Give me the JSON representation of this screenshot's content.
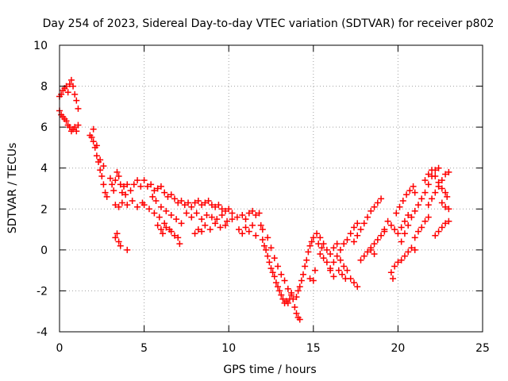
{
  "chart_data": {
    "type": "scatter",
    "title": "Day 254 of 2023, Sidereal Day-to-day VTEC variation (SDTVAR) for receiver p802",
    "xlabel": "GPS time / hours",
    "ylabel": "SDTVAR / TECUs",
    "xlim": [
      0,
      25
    ],
    "ylim": [
      -4,
      10
    ],
    "xticks": [
      0,
      5,
      10,
      15,
      20,
      25
    ],
    "yticks": [
      -4,
      -2,
      0,
      2,
      4,
      6,
      8,
      10
    ],
    "xtick_labels": [
      "0",
      "5",
      "10",
      "15",
      "20",
      "25"
    ],
    "ytick_labels": [
      "-4",
      "-2",
      "0",
      "2",
      "4",
      "6",
      "8",
      "10"
    ],
    "grid": true,
    "marker": "+",
    "series_color": "#ff0000",
    "series": [
      {
        "name": "SDTVAR",
        "points": [
          [
            0.0,
            7.5
          ],
          [
            0.1,
            7.6
          ],
          [
            0.2,
            7.8
          ],
          [
            0.3,
            7.9
          ],
          [
            0.4,
            8.0
          ],
          [
            0.5,
            7.7
          ],
          [
            0.6,
            8.1
          ],
          [
            0.7,
            8.3
          ],
          [
            0.8,
            8.0
          ],
          [
            0.9,
            7.6
          ],
          [
            1.0,
            7.3
          ],
          [
            1.1,
            6.9
          ],
          [
            0.0,
            6.8
          ],
          [
            0.1,
            6.6
          ],
          [
            0.2,
            6.5
          ],
          [
            0.3,
            6.4
          ],
          [
            0.4,
            6.3
          ],
          [
            0.5,
            6.1
          ],
          [
            0.6,
            6.0
          ],
          [
            0.7,
            5.8
          ],
          [
            0.8,
            5.9
          ],
          [
            0.9,
            6.0
          ],
          [
            1.0,
            5.8
          ],
          [
            1.1,
            6.1
          ],
          [
            1.8,
            5.6
          ],
          [
            1.9,
            5.5
          ],
          [
            2.0,
            5.3
          ],
          [
            2.1,
            5.0
          ],
          [
            2.2,
            4.6
          ],
          [
            2.3,
            4.3
          ],
          [
            2.4,
            3.9
          ],
          [
            2.5,
            3.6
          ],
          [
            2.6,
            3.2
          ],
          [
            2.7,
            2.8
          ],
          [
            2.8,
            2.6
          ],
          [
            2.0,
            5.9
          ],
          [
            2.2,
            5.1
          ],
          [
            2.4,
            4.4
          ],
          [
            2.6,
            4.1
          ],
          [
            3.0,
            3.5
          ],
          [
            3.1,
            3.2
          ],
          [
            3.2,
            2.9
          ],
          [
            3.3,
            3.4
          ],
          [
            3.4,
            3.8
          ],
          [
            3.5,
            3.6
          ],
          [
            3.6,
            3.2
          ],
          [
            3.7,
            2.8
          ],
          [
            3.8,
            3.1
          ],
          [
            3.9,
            2.7
          ],
          [
            4.0,
            3.2
          ],
          [
            4.2,
            2.9
          ],
          [
            4.4,
            3.2
          ],
          [
            4.6,
            3.4
          ],
          [
            4.8,
            3.1
          ],
          [
            3.3,
            2.2
          ],
          [
            3.5,
            2.1
          ],
          [
            3.7,
            2.3
          ],
          [
            4.0,
            2.2
          ],
          [
            4.3,
            2.4
          ],
          [
            4.6,
            2.1
          ],
          [
            4.9,
            2.3
          ],
          [
            3.3,
            0.6
          ],
          [
            3.4,
            0.8
          ],
          [
            3.5,
            0.4
          ],
          [
            3.6,
            0.2
          ],
          [
            4.0,
            0.0
          ],
          [
            5.0,
            3.4
          ],
          [
            5.2,
            3.1
          ],
          [
            5.4,
            3.2
          ],
          [
            5.6,
            2.9
          ],
          [
            5.8,
            3.0
          ],
          [
            6.0,
            3.1
          ],
          [
            6.2,
            2.8
          ],
          [
            6.4,
            2.6
          ],
          [
            6.6,
            2.7
          ],
          [
            6.8,
            2.5
          ],
          [
            7.0,
            2.3
          ],
          [
            7.2,
            2.4
          ],
          [
            7.4,
            2.2
          ],
          [
            7.6,
            2.3
          ],
          [
            7.8,
            2.1
          ],
          [
            8.0,
            2.3
          ],
          [
            8.2,
            2.4
          ],
          [
            8.4,
            2.2
          ],
          [
            8.6,
            2.3
          ],
          [
            8.8,
            2.4
          ],
          [
            9.0,
            2.2
          ],
          [
            9.2,
            2.1
          ],
          [
            9.4,
            2.2
          ],
          [
            9.6,
            2.0
          ],
          [
            9.8,
            1.9
          ],
          [
            10.0,
            2.0
          ],
          [
            5.0,
            2.2
          ],
          [
            5.3,
            2.0
          ],
          [
            5.6,
            1.8
          ],
          [
            5.9,
            1.6
          ],
          [
            6.2,
            1.3
          ],
          [
            6.5,
            1.0
          ],
          [
            6.8,
            0.7
          ],
          [
            7.1,
            0.3
          ],
          [
            5.5,
            2.6
          ],
          [
            5.7,
            2.4
          ],
          [
            6.0,
            2.1
          ],
          [
            6.3,
            1.9
          ],
          [
            6.6,
            1.7
          ],
          [
            6.9,
            1.5
          ],
          [
            7.2,
            1.3
          ],
          [
            5.8,
            1.2
          ],
          [
            6.0,
            1.0
          ],
          [
            6.1,
            0.8
          ],
          [
            6.3,
            1.1
          ],
          [
            6.6,
            0.9
          ],
          [
            7.0,
            0.6
          ],
          [
            7.5,
            1.8
          ],
          [
            7.8,
            1.6
          ],
          [
            8.1,
            1.8
          ],
          [
            8.4,
            1.5
          ],
          [
            8.7,
            1.7
          ],
          [
            9.0,
            1.6
          ],
          [
            9.3,
            1.5
          ],
          [
            9.6,
            1.7
          ],
          [
            9.9,
            1.4
          ],
          [
            10.2,
            1.5
          ],
          [
            8.0,
            0.8
          ],
          [
            8.2,
            1.0
          ],
          [
            8.4,
            0.9
          ],
          [
            8.6,
            1.2
          ],
          [
            8.9,
            1.0
          ],
          [
            9.2,
            1.3
          ],
          [
            9.5,
            1.1
          ],
          [
            9.8,
            1.2
          ],
          [
            10.2,
            1.8
          ],
          [
            10.5,
            1.6
          ],
          [
            10.8,
            1.7
          ],
          [
            11.0,
            1.5
          ],
          [
            11.2,
            1.8
          ],
          [
            11.4,
            1.9
          ],
          [
            11.6,
            1.7
          ],
          [
            11.8,
            1.8
          ],
          [
            11.9,
            1.2
          ],
          [
            12.0,
            1.0
          ],
          [
            10.6,
            1.0
          ],
          [
            10.8,
            0.8
          ],
          [
            11.0,
            1.1
          ],
          [
            11.2,
            0.9
          ],
          [
            11.4,
            1.2
          ],
          [
            11.6,
            0.7
          ],
          [
            12.0,
            0.5
          ],
          [
            12.1,
            0.2
          ],
          [
            12.2,
            0.0
          ],
          [
            12.3,
            -0.3
          ],
          [
            12.4,
            -0.6
          ],
          [
            12.5,
            -0.9
          ],
          [
            12.6,
            -1.1
          ],
          [
            12.7,
            -1.3
          ],
          [
            12.8,
            -1.6
          ],
          [
            12.9,
            -1.8
          ],
          [
            13.0,
            -2.0
          ],
          [
            13.1,
            -2.2
          ],
          [
            13.2,
            -2.4
          ],
          [
            13.3,
            -2.6
          ],
          [
            13.4,
            -2.5
          ],
          [
            13.5,
            -2.6
          ],
          [
            13.6,
            -2.4
          ],
          [
            13.7,
            -2.2
          ],
          [
            13.8,
            -2.4
          ],
          [
            13.9,
            -2.8
          ],
          [
            14.0,
            -3.1
          ],
          [
            14.1,
            -3.3
          ],
          [
            14.2,
            -3.4
          ],
          [
            12.3,
            0.6
          ],
          [
            12.5,
            0.1
          ],
          [
            12.7,
            -0.4
          ],
          [
            12.9,
            -0.8
          ],
          [
            13.1,
            -1.2
          ],
          [
            13.3,
            -1.5
          ],
          [
            13.5,
            -1.9
          ],
          [
            13.7,
            -2.1
          ],
          [
            14.0,
            -2.3
          ],
          [
            14.1,
            -2.0
          ],
          [
            14.2,
            -1.8
          ],
          [
            14.3,
            -1.5
          ],
          [
            14.4,
            -1.2
          ],
          [
            14.5,
            -0.8
          ],
          [
            14.6,
            -0.5
          ],
          [
            14.7,
            -0.1
          ],
          [
            14.8,
            0.2
          ],
          [
            14.9,
            0.4
          ],
          [
            15.0,
            0.6
          ],
          [
            14.8,
            -1.4
          ],
          [
            15.0,
            -1.5
          ],
          [
            15.1,
            -1.0
          ],
          [
            15.2,
            0.8
          ],
          [
            15.3,
            0.3
          ],
          [
            15.4,
            -0.2
          ],
          [
            15.5,
            0.1
          ],
          [
            15.6,
            -0.4
          ],
          [
            15.8,
            -0.6
          ],
          [
            16.0,
            -0.9
          ],
          [
            16.2,
            -0.6
          ],
          [
            16.4,
            -0.3
          ],
          [
            16.6,
            -0.5
          ],
          [
            16.8,
            -0.8
          ],
          [
            17.0,
            -1.0
          ],
          [
            17.2,
            -1.4
          ],
          [
            17.4,
            -1.6
          ],
          [
            17.6,
            -1.8
          ],
          [
            15.4,
            0.6
          ],
          [
            15.6,
            0.3
          ],
          [
            15.8,
            0.0
          ],
          [
            16.0,
            -0.2
          ],
          [
            16.2,
            0.1
          ],
          [
            16.4,
            0.3
          ],
          [
            16.6,
            0.0
          ],
          [
            16.8,
            0.3
          ],
          [
            17.0,
            0.5
          ],
          [
            17.2,
            0.8
          ],
          [
            17.4,
            1.1
          ],
          [
            17.6,
            1.3
          ],
          [
            16.0,
            -1.0
          ],
          [
            16.2,
            -1.3
          ],
          [
            16.5,
            -1.0
          ],
          [
            16.7,
            -1.2
          ],
          [
            16.9,
            -1.4
          ],
          [
            17.4,
            0.4
          ],
          [
            17.6,
            0.7
          ],
          [
            17.8,
            1.0
          ],
          [
            18.0,
            1.3
          ],
          [
            18.2,
            1.6
          ],
          [
            18.4,
            1.9
          ],
          [
            18.6,
            2.1
          ],
          [
            18.8,
            2.3
          ],
          [
            19.0,
            2.5
          ],
          [
            18.4,
            0.0
          ],
          [
            18.6,
            -0.2
          ],
          [
            17.8,
            -0.5
          ],
          [
            18.0,
            -0.3
          ],
          [
            18.2,
            -0.1
          ],
          [
            18.4,
            0.1
          ],
          [
            18.6,
            0.3
          ],
          [
            18.8,
            0.5
          ],
          [
            19.0,
            0.7
          ],
          [
            19.2,
            0.9
          ],
          [
            19.2,
            1.0
          ],
          [
            19.4,
            1.4
          ],
          [
            19.6,
            1.2
          ],
          [
            19.8,
            1.0
          ],
          [
            20.0,
            0.8
          ],
          [
            20.2,
            1.1
          ],
          [
            20.4,
            1.4
          ],
          [
            20.6,
            1.7
          ],
          [
            19.6,
            -1.1
          ],
          [
            19.7,
            -1.4
          ],
          [
            19.8,
            -0.8
          ],
          [
            20.0,
            -0.6
          ],
          [
            20.2,
            -0.5
          ],
          [
            20.4,
            -0.3
          ],
          [
            20.6,
            -0.1
          ],
          [
            20.8,
            0.1
          ],
          [
            21.0,
            0.0
          ],
          [
            19.9,
            1.8
          ],
          [
            20.1,
            2.1
          ],
          [
            20.3,
            2.4
          ],
          [
            20.5,
            2.7
          ],
          [
            20.7,
            2.9
          ],
          [
            20.9,
            3.1
          ],
          [
            21.0,
            2.8
          ],
          [
            20.2,
            0.4
          ],
          [
            20.4,
            0.8
          ],
          [
            20.6,
            1.2
          ],
          [
            20.8,
            1.6
          ],
          [
            21.0,
            1.9
          ],
          [
            21.2,
            2.2
          ],
          [
            21.4,
            2.5
          ],
          [
            21.6,
            2.8
          ],
          [
            21.8,
            3.2
          ],
          [
            22.0,
            3.6
          ],
          [
            22.2,
            3.9
          ],
          [
            22.4,
            4.0
          ],
          [
            21.0,
            0.6
          ],
          [
            21.2,
            0.9
          ],
          [
            21.4,
            1.1
          ],
          [
            21.6,
            1.4
          ],
          [
            21.8,
            1.6
          ],
          [
            21.6,
            3.4
          ],
          [
            21.8,
            3.7
          ],
          [
            22.0,
            3.9
          ],
          [
            22.2,
            3.6
          ],
          [
            22.4,
            3.3
          ],
          [
            22.6,
            3.0
          ],
          [
            22.8,
            2.8
          ],
          [
            22.9,
            2.6
          ],
          [
            21.8,
            2.2
          ],
          [
            22.0,
            2.5
          ],
          [
            22.2,
            2.8
          ],
          [
            22.4,
            3.1
          ],
          [
            22.6,
            3.4
          ],
          [
            22.8,
            3.7
          ],
          [
            23.0,
            3.8
          ],
          [
            22.2,
            0.7
          ],
          [
            22.4,
            0.9
          ],
          [
            22.6,
            1.1
          ],
          [
            22.8,
            1.3
          ],
          [
            23.0,
            1.4
          ],
          [
            22.6,
            2.3
          ],
          [
            22.8,
            2.1
          ],
          [
            23.0,
            2.0
          ]
        ]
      }
    ]
  }
}
